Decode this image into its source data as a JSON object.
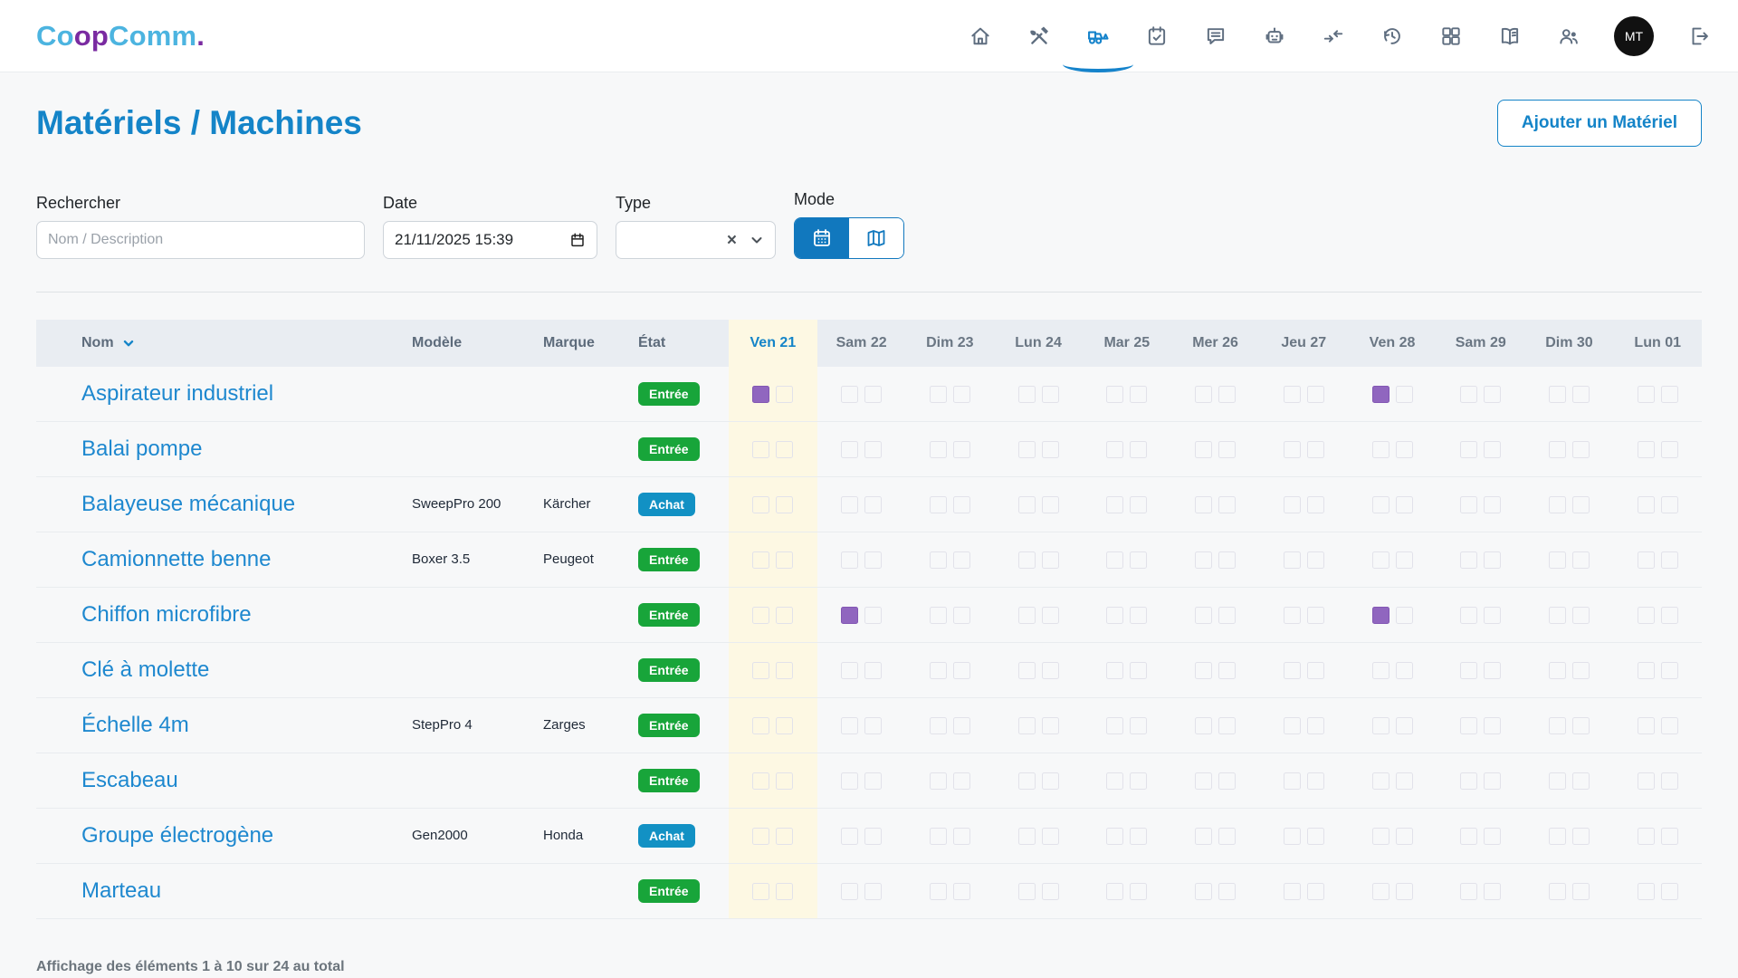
{
  "brand": {
    "segments": [
      {
        "text": "Co",
        "color": "#4cb4e0"
      },
      {
        "text": "op",
        "color": "#7a2ba1"
      },
      {
        "text": "Comm",
        "color": "#4cb4e0"
      },
      {
        "text": ".",
        "color": "#7a2ba1"
      }
    ]
  },
  "nav": {
    "items": [
      "home",
      "tools",
      "equipment",
      "planning",
      "messages",
      "assistant",
      "exchanges",
      "history",
      "apps",
      "directory",
      "members"
    ],
    "active": "equipment",
    "avatar_initials": "MT"
  },
  "page": {
    "title": "Matériels / Machines",
    "add_button_label": "Ajouter un Matériel"
  },
  "filters": {
    "search": {
      "label": "Rechercher",
      "placeholder": "Nom / Description",
      "value": ""
    },
    "date": {
      "label": "Date",
      "value": "21/11/2025 15:39"
    },
    "type": {
      "label": "Type",
      "value": "",
      "clear_glyph": "×",
      "chevron_glyph": "⌄"
    },
    "mode": {
      "label": "Mode",
      "options": [
        "calendar",
        "map"
      ],
      "active": "calendar"
    }
  },
  "table": {
    "columns": {
      "name": "Nom",
      "model": "Modèle",
      "brand": "Marque",
      "state": "État"
    },
    "days": [
      {
        "label": "Ven 21",
        "today": true
      },
      {
        "label": "Sam 22",
        "today": false
      },
      {
        "label": "Dim 23",
        "today": false
      },
      {
        "label": "Lun 24",
        "today": false
      },
      {
        "label": "Mar 25",
        "today": false
      },
      {
        "label": "Mer 26",
        "today": false
      },
      {
        "label": "Jeu 27",
        "today": false
      },
      {
        "label": "Ven 28",
        "today": false
      },
      {
        "label": "Sam 29",
        "today": false
      },
      {
        "label": "Dim 30",
        "today": false
      },
      {
        "label": "Lun 01",
        "today": false
      }
    ],
    "status_colors": {
      "Entrée": "#18a53a",
      "Achat": "#1291c4"
    },
    "slot_color": "#9066bf",
    "rows": [
      {
        "name": "Aspirateur industriel",
        "model": "",
        "brand": "",
        "status": "Entrée",
        "marks": [
          [
            0,
            0
          ],
          [
            7,
            0
          ]
        ]
      },
      {
        "name": "Balai pompe",
        "model": "",
        "brand": "",
        "status": "Entrée",
        "marks": []
      },
      {
        "name": "Balayeuse mécanique",
        "model": "SweepPro 200",
        "brand": "Kärcher",
        "status": "Achat",
        "marks": []
      },
      {
        "name": "Camionnette benne",
        "model": "Boxer 3.5",
        "brand": "Peugeot",
        "status": "Entrée",
        "marks": []
      },
      {
        "name": "Chiffon microfibre",
        "model": "",
        "brand": "",
        "status": "Entrée",
        "marks": [
          [
            1,
            0
          ],
          [
            7,
            0
          ]
        ]
      },
      {
        "name": "Clé à molette",
        "model": "",
        "brand": "",
        "status": "Entrée",
        "marks": []
      },
      {
        "name": "Échelle 4m",
        "model": "StepPro 4",
        "brand": "Zarges",
        "status": "Entrée",
        "marks": []
      },
      {
        "name": "Escabeau",
        "model": "",
        "brand": "",
        "status": "Entrée",
        "marks": []
      },
      {
        "name": "Groupe électrogène",
        "model": "Gen2000",
        "brand": "Honda",
        "status": "Achat",
        "marks": []
      },
      {
        "name": "Marteau",
        "model": "",
        "brand": "",
        "status": "Entrée",
        "marks": []
      }
    ]
  },
  "footer": {
    "summary": "Affichage des éléments 1 à 10 sur 24 au total"
  },
  "colors": {
    "accent": "#1484c8",
    "today_bg": "#fdf8e3",
    "nav_icon": "#5f6e80",
    "active_nav": "#1583cb"
  }
}
